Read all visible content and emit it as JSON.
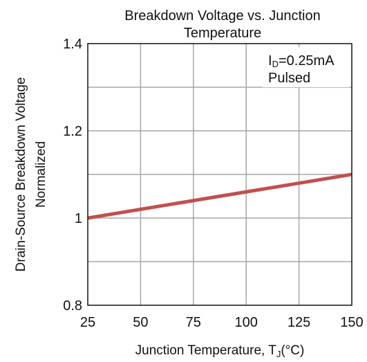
{
  "chart_data": {
    "type": "line",
    "title_lines": [
      "Breakdown Voltage vs. Junction",
      "Temperature"
    ],
    "xlabel": {
      "main": "Junction Temperature, T",
      "sub": "J",
      "unit": "(°C)"
    },
    "ylabel_lines": [
      "Drain-Source Breakdown Voltage",
      "Normalized"
    ],
    "xlim": [
      25,
      150
    ],
    "ylim": [
      0.8,
      1.4
    ],
    "x_ticks": [
      25,
      50,
      75,
      100,
      125,
      150
    ],
    "x_tick_labels": [
      "25",
      "50",
      "75",
      "100",
      "125",
      "150"
    ],
    "y_ticks": [
      0.8,
      1.0,
      1.2,
      1.4
    ],
    "y_tick_labels": [
      "0.8",
      "1",
      "1.2",
      "1.4"
    ],
    "y_minor_gridlines": [
      0.9,
      1.1,
      1.3
    ],
    "grid": true,
    "annotation": {
      "symbol": "I",
      "sub": "D",
      "value": "=0.25mA",
      "line2": "Pulsed",
      "position": "top-right"
    },
    "series": [
      {
        "x": [
          25,
          150
        ],
        "y": [
          1.0,
          1.1
        ],
        "color": "#c0504d"
      }
    ],
    "grid_color": "#a6a6a6"
  }
}
